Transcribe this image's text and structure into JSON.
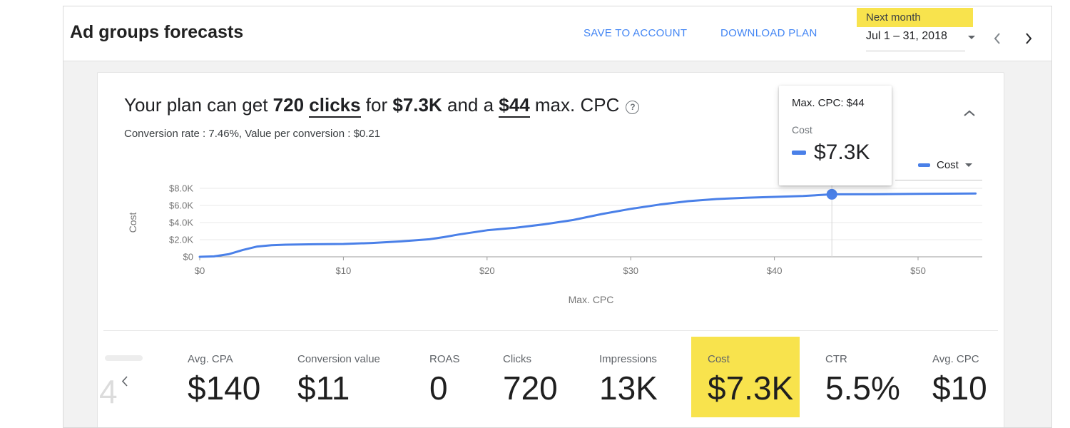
{
  "colors": {
    "accent_blue": "#4285f4",
    "chart_line": "#4a80e8",
    "highlight_yellow": "#f8e34d",
    "text_dark": "#202124",
    "text_gray": "#5f6368",
    "border": "#e0e0e0"
  },
  "header": {
    "title": "Ad groups forecasts",
    "save_button": "SAVE TO ACCOUNT",
    "download_button": "DOWNLOAD PLAN",
    "period_label": "Next month",
    "date_range": "Jul 1 – 31, 2018"
  },
  "plan_summary": {
    "headline": {
      "p1": "Your plan can get ",
      "clicks": "720",
      "clicks_term": "clicks",
      "p2": " for ",
      "cost": "$7.3K",
      "p3": " and a ",
      "cpc": "$44",
      "p4": " max. CPC",
      "help_glyph": "?"
    },
    "subtitle": "Conversion rate : 7.46%, Value per conversion : $0.21"
  },
  "tooltip": {
    "title": "Max. CPC: $44",
    "series": "Cost",
    "value": "$7.3K"
  },
  "legend": {
    "label": "Cost"
  },
  "chart_data": {
    "type": "line",
    "xlabel": "Max. CPC",
    "ylabel": "Cost",
    "xlim": [
      0,
      54.5
    ],
    "ylim": [
      0,
      8000
    ],
    "x_ticks": [
      "$0",
      "$10",
      "$20",
      "$30",
      "$40",
      "$50"
    ],
    "x_tick_values": [
      0,
      10,
      20,
      30,
      40,
      50
    ],
    "y_ticks": [
      "$0",
      "$2.0K",
      "$4.0K",
      "$6.0K",
      "$8.0K"
    ],
    "y_tick_values": [
      0,
      2000,
      4000,
      6000,
      8000
    ],
    "grid": true,
    "legend_position": "top-right",
    "series": [
      {
        "name": "Cost",
        "color": "#4a80e8",
        "x": [
          0,
          1,
          2,
          3,
          4,
          5,
          6,
          8,
          10,
          12,
          14,
          16,
          17,
          18,
          20,
          22,
          24,
          26,
          28,
          30,
          32,
          34,
          36,
          38,
          40,
          42,
          44,
          47,
          50,
          54
        ],
        "y": [
          0,
          50,
          300,
          800,
          1200,
          1350,
          1420,
          1470,
          1500,
          1620,
          1800,
          2050,
          2300,
          2600,
          3100,
          3400,
          3800,
          4300,
          5000,
          5600,
          6100,
          6500,
          6750,
          6900,
          7000,
          7100,
          7300,
          7320,
          7350,
          7400
        ]
      }
    ],
    "highlight": {
      "x": 44,
      "y": 7300,
      "label": "Max. CPC: $44",
      "value_label": "$7.3K"
    }
  },
  "metrics": {
    "ghost_number": "4",
    "items": [
      {
        "label": "Avg. CPA",
        "value": "$140",
        "highlighted": false
      },
      {
        "label": "Conversion value",
        "value": "$11",
        "highlighted": false
      },
      {
        "label": "ROAS",
        "value": "0",
        "highlighted": false
      },
      {
        "label": "Clicks",
        "value": "720",
        "highlighted": false
      },
      {
        "label": "Impressions",
        "value": "13K",
        "highlighted": false
      },
      {
        "label": "Cost",
        "value": "$7.3K",
        "highlighted": true
      },
      {
        "label": "CTR",
        "value": "5.5%",
        "highlighted": false
      },
      {
        "label": "Avg. CPC",
        "value": "$10",
        "highlighted": false
      }
    ]
  }
}
